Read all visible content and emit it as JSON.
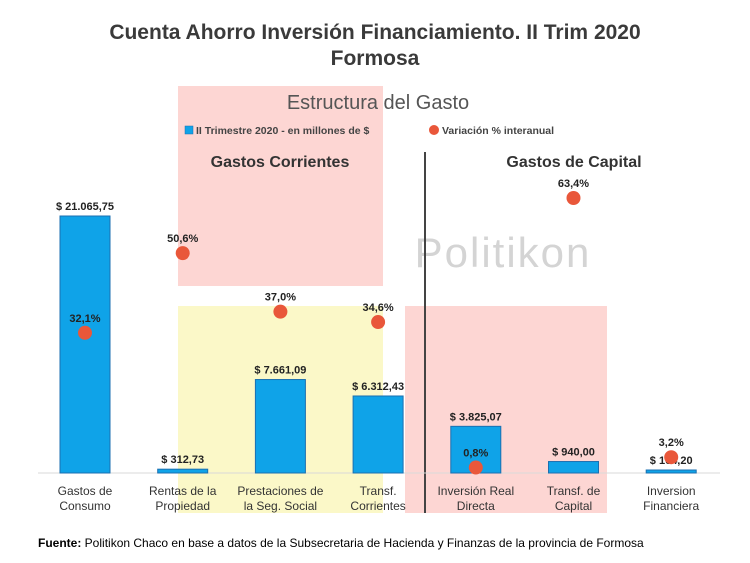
{
  "title_line1": "Cuenta Ahorro Inversión Financiamiento. II Trim 2020",
  "title_line2": "Formosa",
  "source_label": "Fuente:",
  "source_text": " Politikon Chaco en base a datos de la Subsecretaria de Hacienda y Finanzas de la provincia de Formosa",
  "watermark": "Politikon",
  "colors": {
    "bar": "#0FA3E8",
    "bar_stroke": "#1B6FB0",
    "dot": "#E9573A",
    "pink_region": "#FDD6D3",
    "yellow_region": "#FBF8C8",
    "divider": "#444444"
  },
  "chart_data": {
    "type": "bar",
    "subtitle": "Estructura del Gasto",
    "section_labels": [
      "Gastos Corrientes",
      "Gastos de Capital"
    ],
    "categories": [
      [
        "Gastos de",
        "Consumo"
      ],
      [
        "Rentas de la",
        "Propiedad"
      ],
      [
        "Prestaciones de",
        "la Seg. Social"
      ],
      [
        "Transf.",
        "Corrientes"
      ],
      [
        "Inversión Real",
        "Directa"
      ],
      [
        "Transf. de",
        "Capital"
      ],
      [
        "Inversion",
        "Financiera"
      ]
    ],
    "series": [
      {
        "name": "II Trimestre 2020 - en millones de $",
        "values": [
          21065.75,
          312.73,
          7661.09,
          6312.43,
          3825.07,
          940.0,
          164.2
        ],
        "labels": [
          "$ 21.065,75",
          "$ 312,73",
          "$ 7.661,09",
          "$ 6.312,43",
          "$ 3.825,07",
          "$ 940,00",
          "$ 164,20"
        ]
      },
      {
        "name": "Variación % interanual",
        "values": [
          32.1,
          50.6,
          37.0,
          34.6,
          0.8,
          63.4,
          3.2
        ],
        "labels": [
          "32,1%",
          "50,6%",
          "37,0%",
          "34,6%",
          "0,8%",
          "63,4%",
          "3,2%"
        ]
      }
    ],
    "legend_position": "top"
  }
}
